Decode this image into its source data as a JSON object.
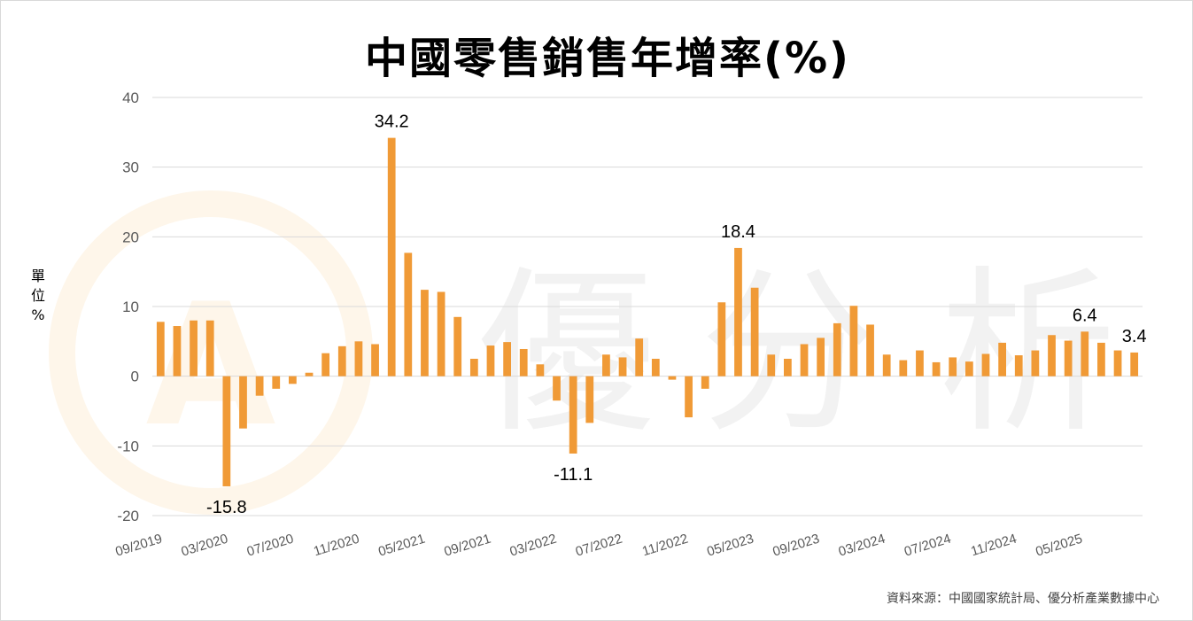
{
  "chart_data": {
    "type": "bar",
    "title": "中國零售銷售年增率(%)",
    "ylabel": "單位 %",
    "ylim": [
      -20,
      40
    ],
    "yticks": [
      -20,
      -10,
      0,
      10,
      20,
      30,
      40
    ],
    "grid": true,
    "legend": "none",
    "bar_color": "#F09A36",
    "x_tick_labels": [
      "09/2019",
      "03/2020",
      "07/2020",
      "11/2020",
      "05/2021",
      "09/2021",
      "03/2022",
      "07/2022",
      "11/2022",
      "05/2023",
      "09/2023",
      "03/2024",
      "07/2024",
      "11/2024",
      "05/2025"
    ],
    "values": [
      7.8,
      7.2,
      8.0,
      8.0,
      -15.8,
      -7.5,
      -2.8,
      -1.8,
      -1.1,
      0.5,
      3.3,
      4.3,
      5.0,
      4.6,
      34.2,
      17.7,
      12.4,
      12.1,
      8.5,
      2.5,
      4.4,
      4.9,
      3.9,
      1.7,
      -3.5,
      -11.1,
      -6.7,
      3.1,
      2.7,
      5.4,
      2.5,
      -0.5,
      -5.9,
      -1.8,
      10.6,
      18.4,
      12.7,
      3.1,
      2.5,
      4.6,
      5.5,
      7.6,
      10.1,
      7.4,
      3.1,
      2.3,
      3.7,
      2.0,
      2.7,
      2.1,
      3.2,
      4.8,
      3.0,
      3.7,
      5.9,
      5.1,
      6.4,
      4.8,
      3.7,
      3.4
    ],
    "data_labels": [
      {
        "index": 4,
        "text": "-15.8"
      },
      {
        "index": 14,
        "text": "34.2"
      },
      {
        "index": 25,
        "text": "-11.1"
      },
      {
        "index": 35,
        "text": "18.4"
      },
      {
        "index": 56,
        "text": "6.4"
      },
      {
        "index": 59,
        "text": "3.4"
      }
    ]
  },
  "source": "資料來源：中國國家統計局、優分析產業數據中心",
  "watermark": {
    "logo_letter": "A",
    "text": [
      "優",
      "分",
      "析"
    ],
    "color": "#F2F2F2",
    "ring_color": "#FEF6EA"
  }
}
